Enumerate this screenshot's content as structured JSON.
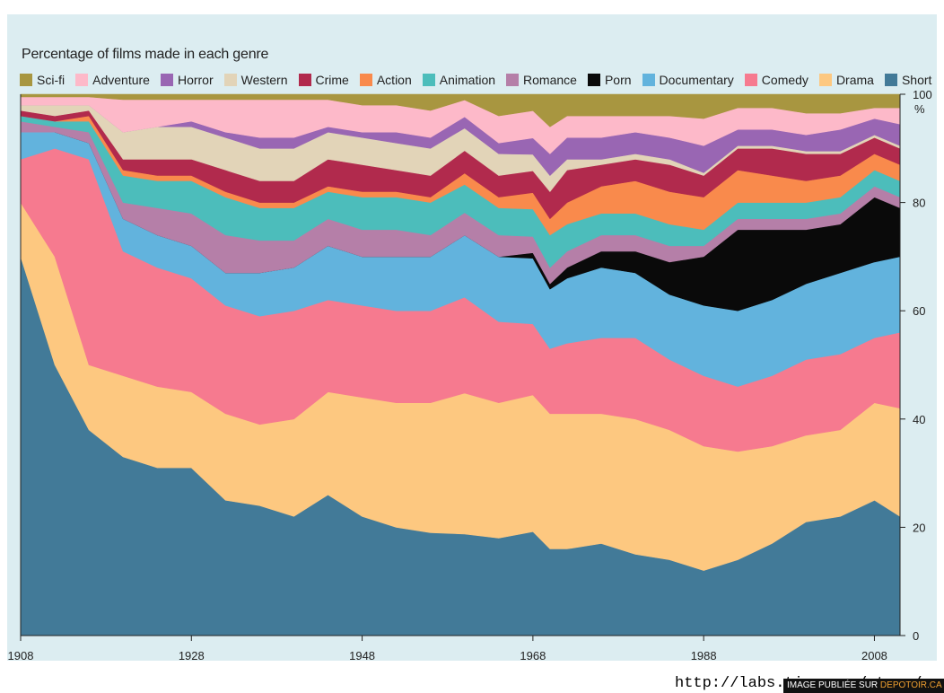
{
  "chart_data": {
    "type": "area",
    "stacked": true,
    "percent": true,
    "title": "Percentage of films made in each genre",
    "xlabel": "",
    "ylabel": "",
    "y_unit_label": "%",
    "xlim": [
      1908,
      2011
    ],
    "ylim": [
      0,
      100
    ],
    "x_ticks": [
      1908,
      1928,
      1948,
      1968,
      1988,
      2008
    ],
    "y_ticks": [
      0,
      20,
      40,
      60,
      80,
      100
    ],
    "legend_position": "top",
    "legend_order": [
      "Sci-fi",
      "Adventure",
      "Horror",
      "Western",
      "Crime",
      "Action",
      "Animation",
      "Romance",
      "Porn",
      "Documentary",
      "Comedy",
      "Drama",
      "Short"
    ],
    "x": [
      1908,
      1912,
      1916,
      1920,
      1924,
      1928,
      1932,
      1936,
      1940,
      1944,
      1948,
      1952,
      1956,
      1960,
      1964,
      1968,
      1970,
      1972,
      1976,
      1980,
      1984,
      1988,
      1992,
      1996,
      2000,
      2004,
      2008,
      2011
    ],
    "series": [
      {
        "name": "Short",
        "color": "#427a98",
        "values": [
          70,
          50,
          38,
          33,
          31,
          31,
          25,
          24,
          22,
          26,
          22,
          20,
          19,
          18,
          18,
          19,
          16,
          16,
          17,
          15,
          14,
          12,
          14,
          17,
          21,
          22,
          25,
          22
        ]
      },
      {
        "name": "Drama",
        "color": "#fdc880",
        "values": [
          10,
          20,
          12,
          15,
          15,
          14,
          16,
          15,
          18,
          19,
          22,
          23,
          24,
          25,
          25,
          25,
          25,
          25,
          24,
          25,
          24,
          23,
          20,
          18,
          16,
          16,
          18,
          20
        ]
      },
      {
        "name": "Comedy",
        "color": "#f67a8f",
        "values": [
          8,
          20,
          38,
          23,
          22,
          21,
          20,
          20,
          20,
          17,
          17,
          17,
          17,
          17,
          15,
          13,
          12,
          13,
          14,
          15,
          13,
          13,
          12,
          13,
          14,
          14,
          12,
          14
        ]
      },
      {
        "name": "Documentary",
        "color": "#62b3dd",
        "values": [
          5,
          3,
          3,
          6,
          6,
          6,
          6,
          8,
          8,
          10,
          9,
          10,
          10,
          11,
          12,
          12,
          11,
          12,
          13,
          12,
          12,
          13,
          14,
          14,
          14,
          15,
          14,
          14
        ]
      },
      {
        "name": "Porn",
        "color": "#0a0a0a",
        "values": [
          0,
          0,
          0,
          0,
          0,
          0,
          0,
          0,
          0,
          0,
          0,
          0,
          0,
          0,
          0,
          1,
          1,
          2,
          3,
          4,
          6,
          9,
          15,
          13,
          10,
          9,
          12,
          9
        ]
      },
      {
        "name": "Romance",
        "color": "#b57fa8",
        "values": [
          2,
          1,
          2,
          3,
          5,
          6,
          7,
          6,
          5,
          5,
          5,
          5,
          4,
          4,
          4,
          3,
          3,
          3,
          3,
          3,
          3,
          2,
          2,
          2,
          2,
          2,
          2,
          2
        ]
      },
      {
        "name": "Animation",
        "color": "#4cbdbb",
        "values": [
          1,
          1,
          2,
          5,
          5,
          6,
          7,
          6,
          6,
          5,
          6,
          6,
          6,
          5,
          5,
          5,
          6,
          5,
          4,
          4,
          4,
          3,
          3,
          3,
          3,
          3,
          3,
          3
        ]
      },
      {
        "name": "Action",
        "color": "#f98a4c",
        "values": [
          0,
          0,
          1,
          1,
          1,
          1,
          1,
          1,
          1,
          1,
          1,
          1,
          1,
          2,
          2,
          3,
          3,
          4,
          5,
          6,
          6,
          6,
          6,
          5,
          4,
          4,
          3,
          3
        ]
      },
      {
        "name": "Crime",
        "color": "#b12a4d",
        "values": [
          1,
          1,
          1,
          2,
          3,
          3,
          4,
          4,
          4,
          5,
          5,
          4,
          4,
          4,
          4,
          4,
          5,
          6,
          4,
          4,
          5,
          4,
          4,
          5,
          5,
          4,
          3,
          3
        ]
      },
      {
        "name": "Western",
        "color": "#e2d4b8",
        "values": [
          1,
          2,
          1,
          5,
          6,
          6,
          6,
          6,
          6,
          5,
          5,
          5,
          5,
          4,
          4,
          3,
          3,
          2,
          1,
          1,
          1,
          0.5,
          0.5,
          0.5,
          0.5,
          0.5,
          0.5,
          0.5
        ]
      },
      {
        "name": "Horror",
        "color": "#9966b3",
        "values": [
          0,
          0,
          0,
          0,
          0,
          1,
          1,
          2,
          2,
          1,
          1,
          2,
          2,
          2,
          2,
          3,
          4,
          4,
          4,
          4,
          4,
          5,
          3,
          3,
          3,
          4,
          3,
          4
        ]
      },
      {
        "name": "Adventure",
        "color": "#fdb9c9",
        "values": [
          1.5,
          1.5,
          1.5,
          6,
          5,
          4,
          6,
          7,
          7,
          5,
          5,
          5,
          5,
          3,
          5,
          5,
          5,
          4,
          4,
          3,
          4,
          5,
          4,
          4,
          4,
          3,
          2,
          3
        ]
      },
      {
        "name": "Sci-fi",
        "color": "#a89640",
        "values": [
          0.5,
          0.5,
          0.5,
          1,
          1,
          1,
          1,
          1,
          1,
          1,
          2,
          2,
          3,
          1,
          4,
          3,
          6,
          4,
          4,
          4,
          4,
          4.5,
          2.5,
          2.5,
          3.5,
          3.5,
          2.5,
          2.5
        ]
      }
    ]
  },
  "footer": {
    "url_text": "http://labs.time.com/story/genres",
    "watermark_prefix": "IMAGE PUBLIÉE SUR",
    "watermark_site": "DEPOTOIR.CA"
  }
}
